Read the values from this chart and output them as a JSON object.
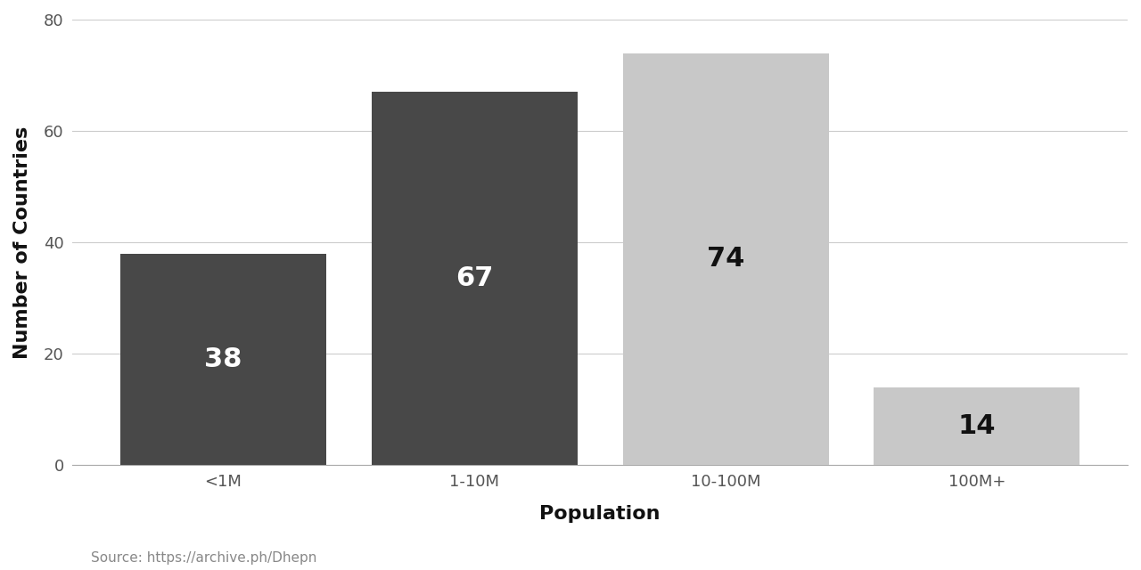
{
  "categories": [
    "<1M",
    "1-10M",
    "10-100M",
    "100M+"
  ],
  "values": [
    38,
    67,
    74,
    14
  ],
  "bar_colors": [
    "#484848",
    "#484848",
    "#c8c8c8",
    "#c8c8c8"
  ],
  "label_colors": [
    "#ffffff",
    "#ffffff",
    "#111111",
    "#111111"
  ],
  "xlabel": "Population",
  "ylabel": "Number of Countries",
  "ylim": [
    0,
    80
  ],
  "yticks": [
    0,
    20,
    40,
    60,
    80
  ],
  "source_text": "Source: https://archive.ph/Dhepn",
  "bar_width": 0.82,
  "label_fontsize": 22,
  "axis_label_fontsize": 16,
  "tick_fontsize": 13,
  "source_fontsize": 11,
  "background_color": "#ffffff",
  "grid_color": "#cccccc",
  "spine_color": "#aaaaaa"
}
